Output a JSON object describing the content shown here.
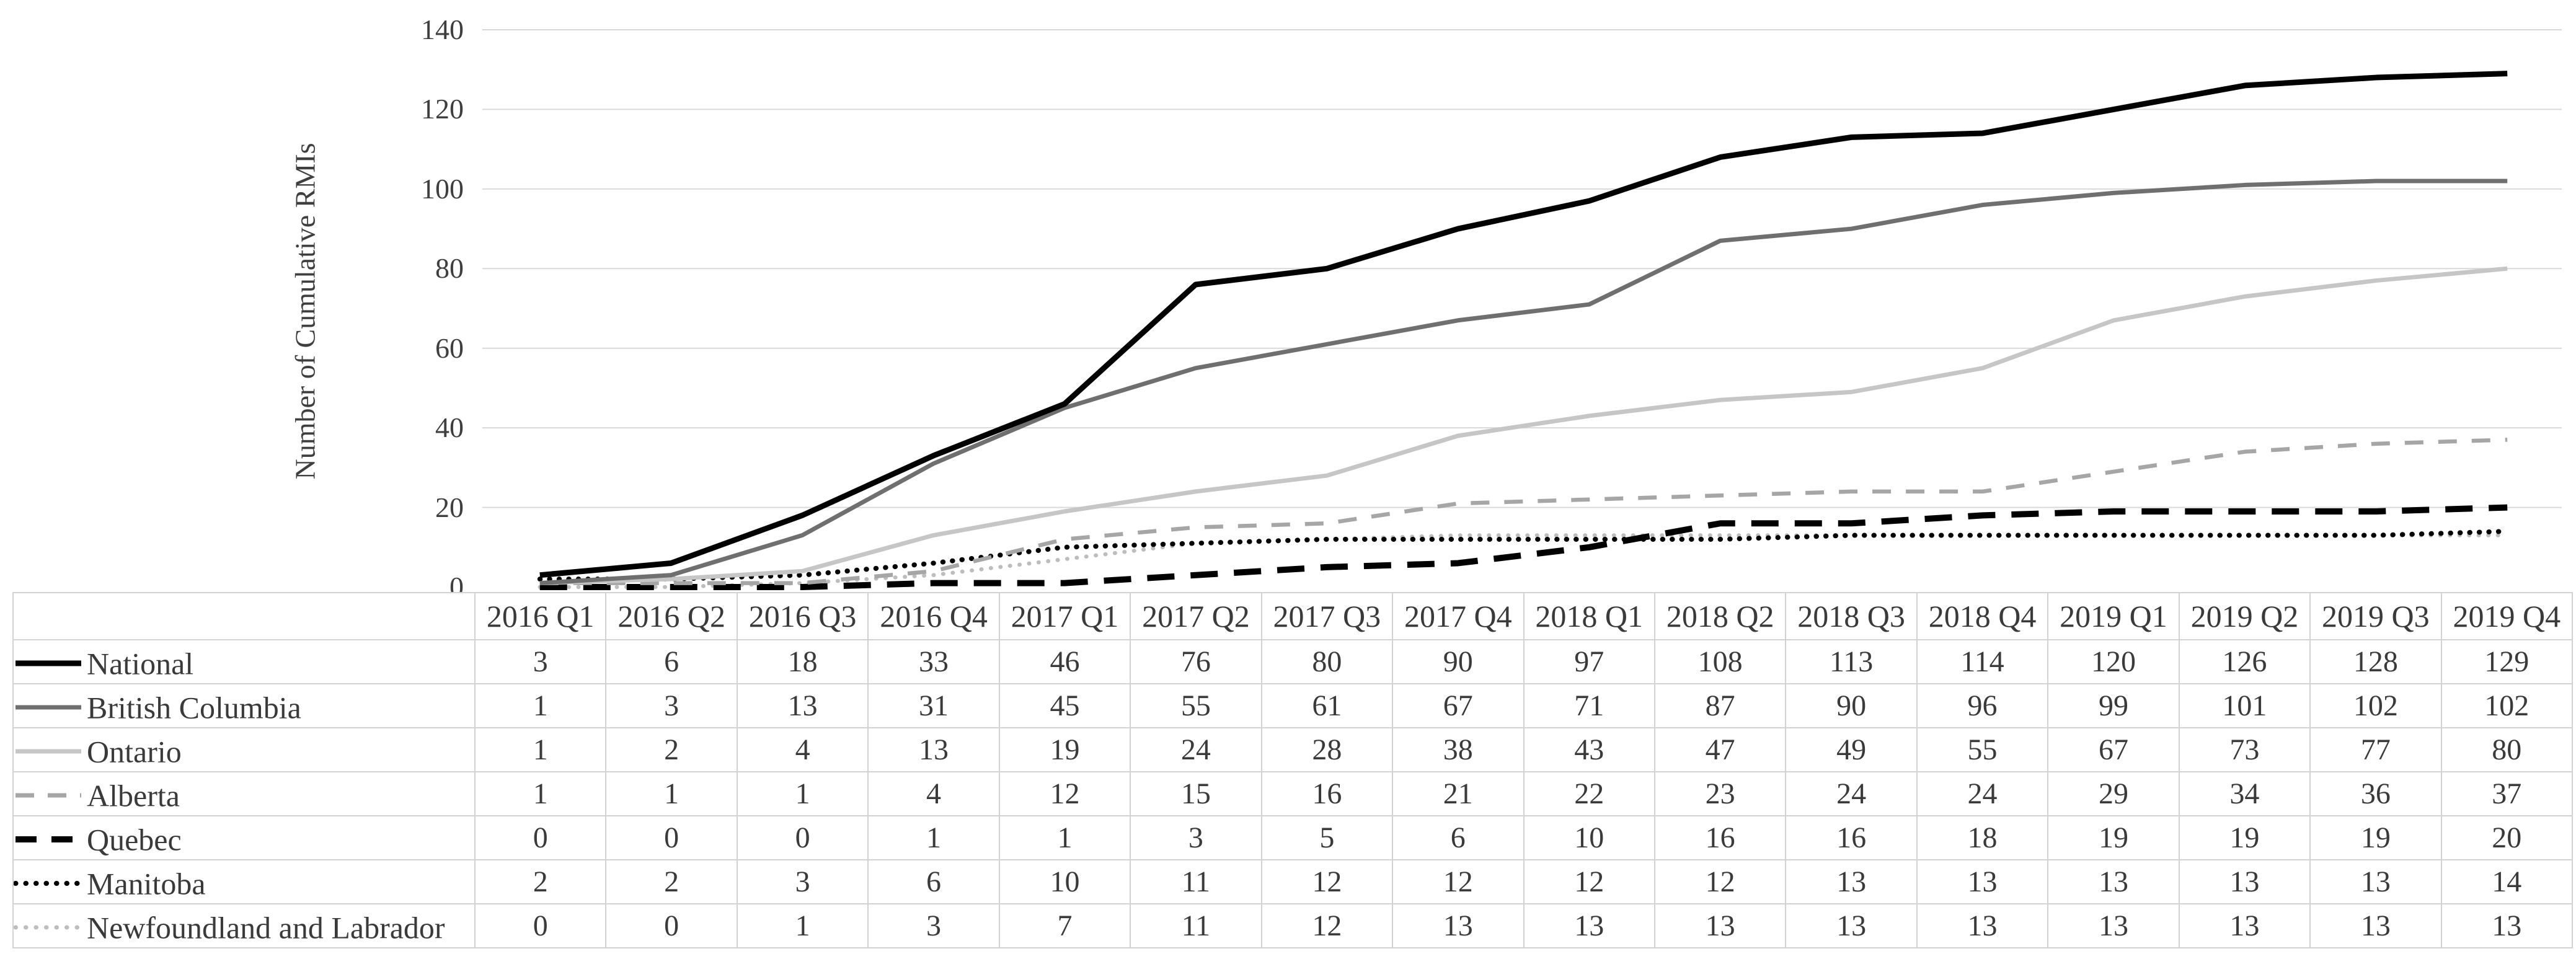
{
  "chart_data": {
    "type": "line",
    "title": "",
    "xlabel": "",
    "ylabel": "Number of Cumulative RMIs",
    "ylim": [
      0,
      140
    ],
    "yticks": [
      0,
      20,
      40,
      60,
      80,
      100,
      120,
      140
    ],
    "grid": true,
    "gridline_color": "#d9d9d9",
    "legend": "embedded-in-table-rows",
    "categories": [
      "2016 Q1",
      "2016 Q2",
      "2016 Q3",
      "2016 Q4",
      "2017 Q1",
      "2017 Q2",
      "2017 Q3",
      "2017 Q4",
      "2018 Q1",
      "2018 Q2",
      "2018 Q3",
      "2018 Q4",
      "2019 Q1",
      "2019 Q2",
      "2019 Q3",
      "2019 Q4"
    ],
    "series": [
      {
        "name": "National",
        "color": "#000000",
        "style": "solid",
        "width": 9,
        "values": [
          3,
          6,
          18,
          33,
          46,
          76,
          80,
          90,
          97,
          108,
          113,
          114,
          120,
          126,
          128,
          129
        ]
      },
      {
        "name": "British Columbia",
        "color": "#6f6f6f",
        "style": "solid",
        "width": 7,
        "values": [
          1,
          3,
          13,
          31,
          45,
          55,
          61,
          67,
          71,
          87,
          90,
          96,
          99,
          101,
          102,
          102
        ]
      },
      {
        "name": "Ontario",
        "color": "#c6c6c6",
        "style": "solid",
        "width": 7,
        "values": [
          1,
          2,
          4,
          13,
          19,
          24,
          28,
          38,
          43,
          47,
          49,
          55,
          67,
          73,
          77,
          80
        ]
      },
      {
        "name": "Alberta",
        "color": "#a6a6a6",
        "style": "dashed",
        "width": 6.5,
        "values": [
          1,
          1,
          1,
          4,
          12,
          15,
          16,
          21,
          22,
          23,
          24,
          24,
          29,
          34,
          36,
          37
        ]
      },
      {
        "name": "Quebec",
        "color": "#000000",
        "style": "long-dash",
        "width": 10,
        "values": [
          0,
          0,
          0,
          1,
          1,
          3,
          5,
          6,
          10,
          16,
          16,
          18,
          19,
          19,
          19,
          20
        ]
      },
      {
        "name": "Manitoba",
        "color": "#000000",
        "style": "dotted",
        "width": 8,
        "values": [
          2,
          2,
          3,
          6,
          10,
          11,
          12,
          12,
          12,
          12,
          13,
          13,
          13,
          13,
          13,
          14
        ]
      },
      {
        "name": "Newfoundland and Labrador",
        "color": "#bdbdbd",
        "style": "dotted",
        "width": 6.5,
        "values": [
          0,
          0,
          1,
          3,
          7,
          11,
          12,
          13,
          13,
          13,
          13,
          13,
          13,
          13,
          13,
          13
        ]
      }
    ]
  }
}
